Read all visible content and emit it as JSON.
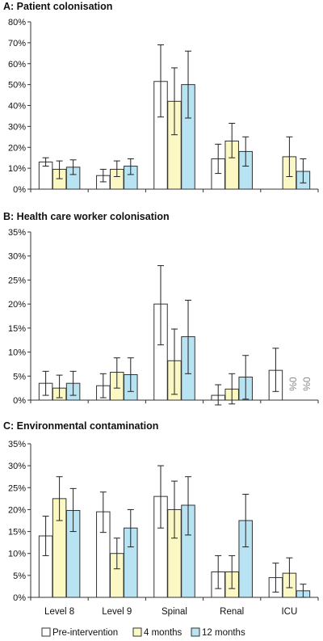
{
  "chart_data": [
    {
      "type": "bar",
      "title": "A: Patient colonisation",
      "categories": [
        "Level 8",
        "Level 9",
        "Spinal",
        "Renal",
        "ICU"
      ],
      "ylim": [
        0,
        80
      ],
      "yticks": [
        "0%",
        "10%",
        "20%",
        "30%",
        "40%",
        "50%",
        "60%",
        "70%",
        "80%"
      ],
      "series": [
        {
          "name": "Pre-intervention",
          "values": [
            13,
            6.5,
            51.5,
            14.5,
            null
          ],
          "err_low": [
            11,
            3.5,
            34.5,
            7.5,
            null
          ],
          "err_high": [
            15,
            9.5,
            69,
            21.5,
            null
          ]
        },
        {
          "name": "4 months",
          "values": [
            9.5,
            9.5,
            42,
            23,
            15.5
          ],
          "err_low": [
            5,
            6,
            26,
            15,
            6
          ],
          "err_high": [
            13.5,
            13.5,
            58,
            31.5,
            25
          ]
        },
        {
          "name": "12 months",
          "values": [
            10.5,
            11,
            50,
            18,
            8.5
          ],
          "err_low": [
            7,
            7,
            34,
            11,
            3
          ],
          "err_high": [
            14,
            14.5,
            66,
            25,
            14.5
          ]
        }
      ],
      "annotations": [],
      "grid": false
    },
    {
      "type": "bar",
      "title": "B: Health care worker colonisation",
      "categories": [
        "Level 8",
        "Level 9",
        "Spinal",
        "Renal",
        "ICU"
      ],
      "ylim": [
        0,
        35
      ],
      "yticks": [
        "0%",
        "5%",
        "10%",
        "15%",
        "20%",
        "25%",
        "30%",
        "35%"
      ],
      "series": [
        {
          "name": "Pre-intervention",
          "values": [
            3.5,
            3,
            20,
            1,
            6.2
          ],
          "err_low": [
            1,
            0.5,
            11.5,
            -1,
            1.8
          ],
          "err_high": [
            6,
            5.5,
            28,
            3.2,
            10.8
          ]
        },
        {
          "name": "4 months",
          "values": [
            2.5,
            5.8,
            8.2,
            2.3,
            null
          ],
          "err_low": [
            0.5,
            2.5,
            1.2,
            -0.8,
            null
          ],
          "err_high": [
            5.2,
            8.8,
            14.8,
            5.5,
            null
          ]
        },
        {
          "name": "12 months",
          "values": [
            3.5,
            5.3,
            13.2,
            4.8,
            null
          ],
          "err_low": [
            1,
            1.8,
            5.5,
            0.2,
            null
          ],
          "err_high": [
            6,
            8.8,
            20.8,
            9.3,
            null
          ]
        }
      ],
      "annotations": [
        {
          "category": "ICU",
          "series": "4 months",
          "text": "0%"
        },
        {
          "category": "ICU",
          "series": "12 months",
          "text": "0%"
        }
      ],
      "grid": false
    },
    {
      "type": "bar",
      "title": "C: Environmental contamination",
      "categories": [
        "Level 8",
        "Level 9",
        "Spinal",
        "Renal",
        "ICU"
      ],
      "ylim": [
        0,
        35
      ],
      "yticks": [
        "0%",
        "5%",
        "10%",
        "15%",
        "20%",
        "25%",
        "30%",
        "35%"
      ],
      "series": [
        {
          "name": "Pre-intervention",
          "values": [
            14,
            19.5,
            23,
            5.8,
            4.5
          ],
          "err_low": [
            9.5,
            14.8,
            15.8,
            2,
            1.2
          ],
          "err_high": [
            18.5,
            24,
            30,
            9.5,
            7.8
          ]
        },
        {
          "name": "4 months",
          "values": [
            22.5,
            10,
            20,
            5.8,
            5.5
          ],
          "err_low": [
            17.5,
            6.5,
            13.5,
            2,
            2.2
          ],
          "err_high": [
            27.5,
            13.5,
            26.5,
            9.5,
            9
          ]
        },
        {
          "name": "12 months",
          "values": [
            19.8,
            15.8,
            21,
            17.5,
            1.5
          ],
          "err_low": [
            15,
            11.5,
            14.2,
            11.5,
            0
          ],
          "err_high": [
            24.8,
            20,
            27.5,
            23.5,
            3
          ]
        }
      ],
      "annotations": [],
      "grid": false
    }
  ],
  "legend": {
    "placement": "bottom",
    "items": [
      {
        "label": "Pre-intervention",
        "color": "#ffffff"
      },
      {
        "label": "4 months",
        "color": "#fbf8c4"
      },
      {
        "label": "12 months",
        "color": "#b7e3f3"
      }
    ]
  },
  "colors": {
    "axis": "#333333",
    "bar_stroke": "#333333",
    "annotation_text": "#8a8a8a"
  }
}
